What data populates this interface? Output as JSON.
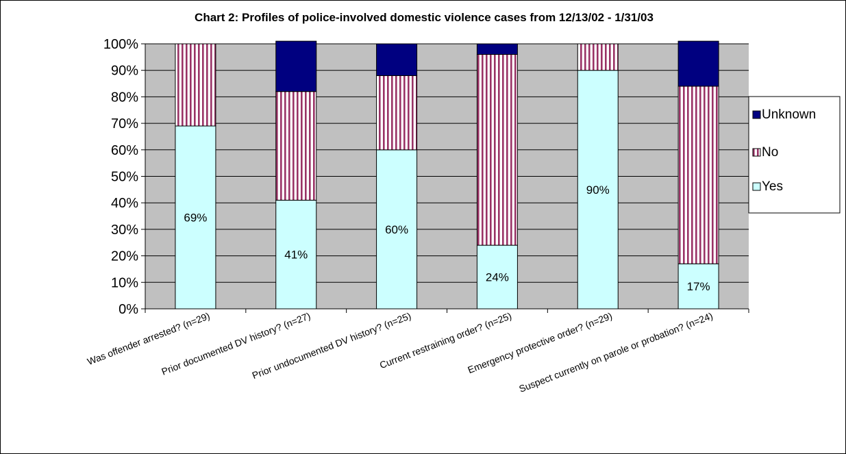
{
  "chart_data": {
    "type": "bar",
    "stacked": true,
    "title": "Chart 2: Profiles of police-involved domestic violence cases from 12/13/02 - 1/31/03",
    "xlabel": "",
    "ylabel": "",
    "ylim": [
      0,
      100
    ],
    "yticks": [
      "0%",
      "10%",
      "20%",
      "30%",
      "40%",
      "50%",
      "60%",
      "70%",
      "80%",
      "90%",
      "100%"
    ],
    "grid": true,
    "legend_position": "right",
    "categories": [
      "Was offender arrested? (n=29)",
      "Prior documented DV history? (n=27)",
      "Prior undocumented DV history? (n=25)",
      "Current restraining order? (n=25)",
      "Emergency protective order? (n=29)",
      "Suspect currently on parole or probation? (n=24)"
    ],
    "series": [
      {
        "name": "Yes",
        "values": [
          69,
          41,
          60,
          24,
          90,
          17
        ],
        "color": "#ccffff",
        "pattern": "solid"
      },
      {
        "name": "No",
        "values": [
          31,
          41,
          28,
          72,
          10,
          67
        ],
        "color": "#993366",
        "pattern": "vertical-stripes"
      },
      {
        "name": "Unknown",
        "values": [
          0,
          19,
          12,
          4,
          0,
          17
        ],
        "color": "#000080",
        "pattern": "solid"
      }
    ],
    "legend_order": [
      "Unknown",
      "No",
      "Yes"
    ],
    "data_labels": [
      "69%",
      "41%",
      "60%",
      "24%",
      "90%",
      "17%"
    ],
    "plot_background": "#c0c0c0"
  }
}
